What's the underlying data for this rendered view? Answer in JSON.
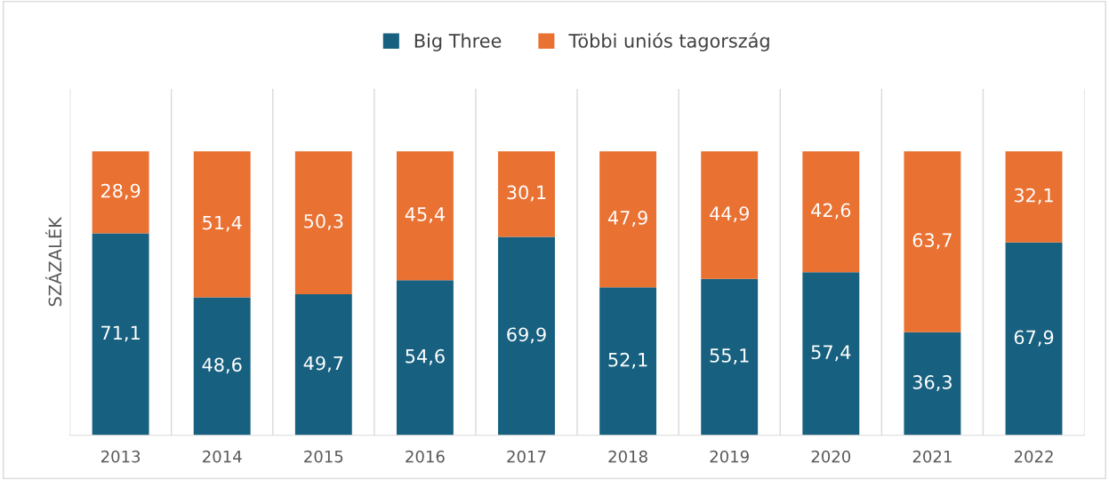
{
  "chart_data": {
    "type": "bar",
    "stacked": true,
    "ylabel": "SZÁZALÉK",
    "categories": [
      "2013",
      "2014",
      "2015",
      "2016",
      "2017",
      "2018",
      "2019",
      "2020",
      "2021",
      "2022"
    ],
    "series": [
      {
        "name": "Big Three",
        "color": "#17607f",
        "values": [
          71.1,
          48.6,
          49.7,
          54.6,
          69.9,
          52.1,
          55.1,
          57.4,
          36.3,
          67.9
        ],
        "value_labels": [
          "71,1",
          "48,6",
          "49,7",
          "54,6",
          "69,9",
          "52,1",
          "55,1",
          "57,4",
          "36,3",
          "67,9"
        ]
      },
      {
        "name": "Többi uniós tagország",
        "color": "#e97132",
        "values": [
          28.9,
          51.4,
          50.3,
          45.4,
          30.1,
          47.9,
          44.9,
          42.6,
          63.7,
          32.1
        ],
        "value_labels": [
          "28,9",
          "51,4",
          "50,3",
          "45,4",
          "30,1",
          "47,9",
          "44,9",
          "42,6",
          "63,7",
          "32,1"
        ]
      }
    ],
    "grid": "x",
    "legend": "top",
    "tick_labels": "x"
  }
}
